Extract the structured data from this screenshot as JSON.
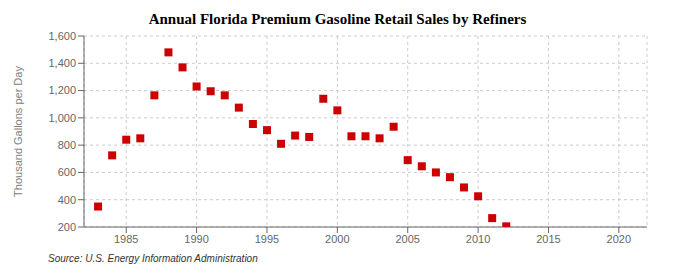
{
  "chart_data": {
    "type": "scatter",
    "title": "Annual Florida Premium Gasoline Retail Sales by Refiners",
    "ylabel": "Thousand Gallons per Day",
    "annotations": [
      "Source: U.S. Energy Information Administration"
    ],
    "x": [
      1983,
      1984,
      1985,
      1986,
      1987,
      1988,
      1989,
      1990,
      1991,
      1992,
      1993,
      1994,
      1995,
      1996,
      1997,
      1998,
      1999,
      2000,
      2001,
      2002,
      2003,
      2004,
      2005,
      2006,
      2007,
      2008,
      2009,
      2010,
      2011,
      2012
    ],
    "values": [
      350,
      725,
      840,
      850,
      1165,
      1480,
      1370,
      1230,
      1195,
      1165,
      1075,
      955,
      910,
      810,
      870,
      860,
      1140,
      1055,
      865,
      865,
      850,
      935,
      690,
      645,
      600,
      565,
      490,
      425,
      265,
      205
    ],
    "color": "#cc0000",
    "marker": "square",
    "xlim": [
      1982,
      2022
    ],
    "ylim": [
      200,
      1600
    ],
    "xticks": [
      1985,
      1990,
      1995,
      2000,
      2005,
      2010,
      2015,
      2020
    ],
    "yticks": [
      200,
      400,
      600,
      800,
      {
        "value": 1000,
        "label": "1,000"
      },
      {
        "value": 1200,
        "label": "1,200"
      },
      {
        "value": 1400,
        "label": "1,400"
      },
      {
        "value": 1600,
        "label": "1,600"
      }
    ],
    "grid": true
  }
}
